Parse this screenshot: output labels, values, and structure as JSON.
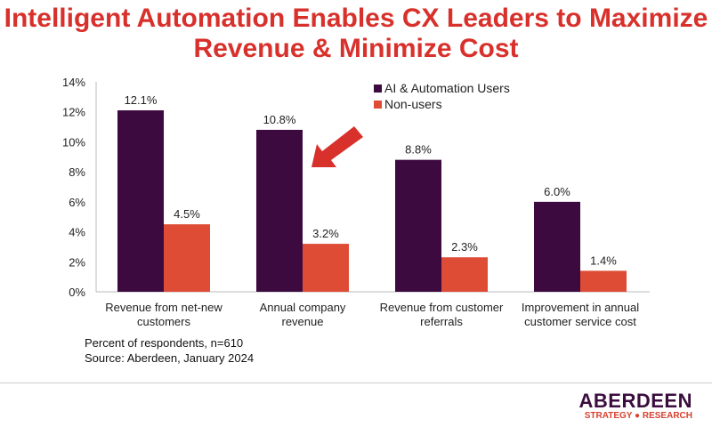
{
  "chart_data": {
    "type": "bar",
    "title": "Intelligent Automation Enables CX Leaders to Maximize Revenue & Minimize Cost",
    "categories": [
      [
        "Revenue from net-new",
        "customers"
      ],
      [
        "Annual company",
        "revenue"
      ],
      [
        "Revenue from customer",
        "referrals"
      ],
      [
        "Improvement in annual",
        "customer service cost"
      ]
    ],
    "series": [
      {
        "name": "AI & Automation Users",
        "color": "#3d0a40",
        "values": [
          12.1,
          10.8,
          8.8,
          6.0
        ],
        "labels": [
          "12.1%",
          "10.8%",
          "8.8%",
          "6.0%"
        ]
      },
      {
        "name": "Non-users",
        "color": "#df4c36",
        "values": [
          4.5,
          3.2,
          2.3,
          1.4
        ],
        "labels": [
          "4.5%",
          "3.2%",
          "2.3%",
          "1.4%"
        ]
      }
    ],
    "yticks": [
      "0%",
      "2%",
      "4%",
      "6%",
      "8%",
      "10%",
      "12%",
      "14%"
    ],
    "ylim": [
      0,
      14
    ],
    "legend": "top-right",
    "annotation": "red arrow pointing to Annual company revenue",
    "notes": [
      "Percent of respondents, n=610",
      "Source: Aberdeen, January 2024"
    ]
  },
  "logo": {
    "line1": "ABERDEEN",
    "line2": "STRATEGY ● RESEARCH"
  }
}
